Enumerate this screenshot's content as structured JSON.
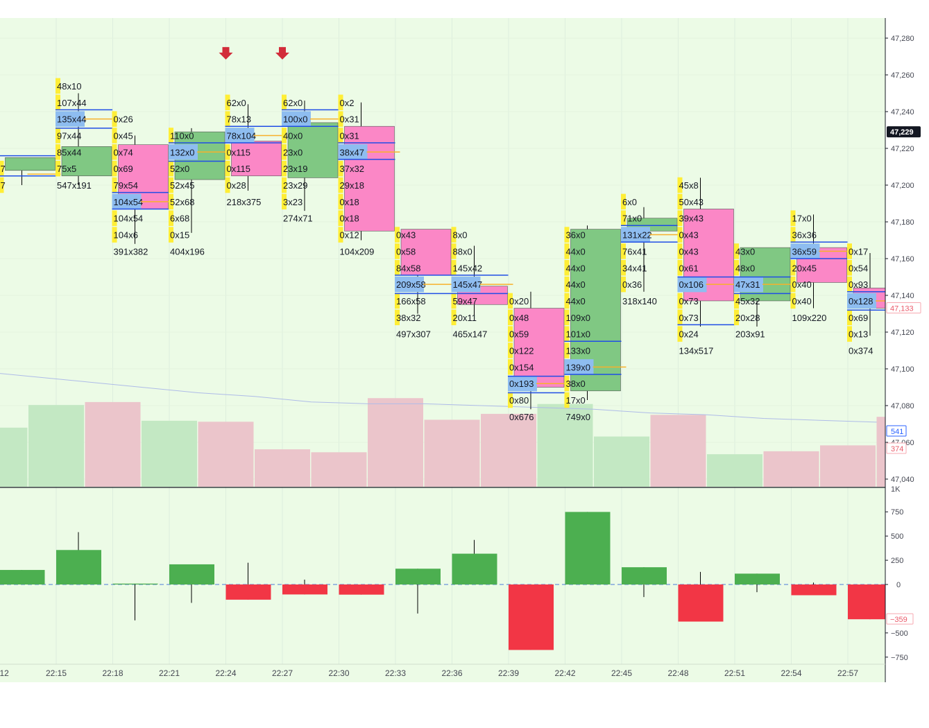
{
  "colors": {
    "background": "#ecfbe6",
    "up_candle": "#80c883",
    "down_candle": "#fb87c6",
    "footprint_cell": "#ffee36",
    "footprint_poc": "#8ebdf0",
    "level_line": "#1f4de6",
    "poc_line": "#f7b12b",
    "volume_up": "#c3e8c3",
    "volume_down": "#ebc5cb",
    "delta_up": "#4caf50",
    "delta_down": "#f23645",
    "signal_arrow": "#d22c3a",
    "vwap": "#aebbe8",
    "text": "#131722",
    "axis_text": "#434651"
  },
  "chart_data": [
    {
      "type": "candlestick-footprint",
      "title": "",
      "x_ticks": [
        "12",
        "22:15",
        "22:18",
        "22:21",
        "22:24",
        "22:27",
        "22:30",
        "22:33",
        "22:36",
        "22:39",
        "22:42",
        "22:45",
        "22:48",
        "22:51",
        "22:54",
        "22:57"
      ],
      "y_ticks": [
        "47,280",
        "47,260",
        "47,240",
        "47,220",
        "47,200",
        "47,180",
        "47,160",
        "47,140",
        "47,120",
        "47,100",
        "47,080",
        "47,060",
        "47,040"
      ],
      "ylim": [
        47035,
        47285
      ],
      "last_price_label": "47,229",
      "last_price": 47229,
      "close_price_label": "47,133",
      "close_price": 47133,
      "volume_label": "541",
      "volume_last": 541,
      "delta_last_label": "374",
      "volume_scale_label": "1K",
      "signals": [
        {
          "time": "22:24",
          "price": 47271
        },
        {
          "time": "22:27",
          "price": 47271
        }
      ],
      "vwap": [
        47099,
        47096,
        47093,
        47090,
        47087,
        47085,
        47082,
        47081,
        47081,
        47080,
        47079,
        47078,
        47076,
        47075,
        47073,
        47072,
        47071
      ],
      "candles": [
        {
          "time": "22:12",
          "x": 0,
          "open": 47208,
          "high": 47215,
          "low": 47200,
          "close": 47215,
          "cells": [
            {
              "text": "7",
              "price": 47209
            },
            {
              "text": "7",
              "price": 47200
            }
          ],
          "summary": "",
          "summary_price": 0,
          "levels": [
            47216,
            47205
          ],
          "poc": 47206
        },
        {
          "time": "22:15",
          "x": 1,
          "open": 47205,
          "high": 47250,
          "low": 47200,
          "close": 47221,
          "cells": [
            {
              "text": "48x10",
              "price": 47254
            },
            {
              "text": "107x44",
              "price": 47245
            },
            {
              "text": "135x44",
              "price": 47236
            },
            {
              "text": "97x44",
              "price": 47227
            },
            {
              "text": "85x44",
              "price": 47218
            },
            {
              "text": "75x5",
              "price": 47209
            }
          ],
          "summary": "547x191",
          "summary_price": 47200,
          "levels": [
            47241,
            47231
          ],
          "poc": 47236
        },
        {
          "time": "22:18",
          "x": 2,
          "open": 47222,
          "high": 47227,
          "low": 47168,
          "close": 47187,
          "cells": [
            {
              "text": "0x26",
              "price": 47236
            },
            {
              "text": "0x45",
              "price": 47227
            },
            {
              "text": "0x74",
              "price": 47218
            },
            {
              "text": "0x69",
              "price": 47209
            },
            {
              "text": "79x54",
              "price": 47200
            },
            {
              "text": "104x54",
              "price": 47191
            },
            {
              "text": "104x54",
              "price": 47182
            },
            {
              "text": "104x6",
              "price": 47173
            }
          ],
          "summary": "391x382",
          "summary_price": 47164,
          "levels": [
            47196,
            47187
          ],
          "poc": 47191
        },
        {
          "time": "22:21",
          "x": 3,
          "open": 47203,
          "high": 47231,
          "low": 47174,
          "close": 47229,
          "cells": [
            {
              "text": "110x0",
              "price": 47227
            },
            {
              "text": "132x0",
              "price": 47218
            },
            {
              "text": "52x0",
              "price": 47209
            },
            {
              "text": "52x45",
              "price": 47200
            },
            {
              "text": "52x68",
              "price": 47191
            },
            {
              "text": "6x68",
              "price": 47182
            },
            {
              "text": "0x15",
              "price": 47173
            }
          ],
          "summary": "404x196",
          "summary_price": 47164,
          "levels": [
            47223,
            47213
          ],
          "poc": 47218
        },
        {
          "time": "22:24",
          "x": 4,
          "open": 47224,
          "high": 47244,
          "low": 47197,
          "close": 47205,
          "cells": [
            {
              "text": "62x0",
              "price": 47245
            },
            {
              "text": "78x13",
              "price": 47236
            },
            {
              "text": "78x104",
              "price": 47227
            },
            {
              "text": "0x115",
              "price": 47218
            },
            {
              "text": "0x115",
              "price": 47209
            },
            {
              "text": "0x28",
              "price": 47200
            }
          ],
          "summary": "218x375",
          "summary_price": 47191,
          "levels": [
            47232,
            47223
          ],
          "poc": 47227
        },
        {
          "time": "22:27",
          "x": 5,
          "open": 47204,
          "high": 47246,
          "low": 47186,
          "close": 47234,
          "cells": [
            {
              "text": "62x0",
              "price": 47245
            },
            {
              "text": "100x0",
              "price": 47236
            },
            {
              "text": "40x0",
              "price": 47227
            },
            {
              "text": "23x0",
              "price": 47218
            },
            {
              "text": "23x19",
              "price": 47209
            },
            {
              "text": "23x29",
              "price": 47200
            },
            {
              "text": "3x23",
              "price": 47191
            }
          ],
          "summary": "274x71",
          "summary_price": 47182,
          "levels": [
            47241,
            47232
          ],
          "poc": 47236
        },
        {
          "time": "22:30",
          "x": 6,
          "open": 47232,
          "high": 47245,
          "low": 47170,
          "close": 47175,
          "cells": [
            {
              "text": "0x2",
              "price": 47245
            },
            {
              "text": "0x31",
              "price": 47236
            },
            {
              "text": "0x31",
              "price": 47227
            },
            {
              "text": "38x47",
              "price": 47218
            },
            {
              "text": "37x32",
              "price": 47209
            },
            {
              "text": "29x18",
              "price": 47200
            },
            {
              "text": "0x18",
              "price": 47191
            },
            {
              "text": "0x18",
              "price": 47182
            },
            {
              "text": "0x12",
              "price": 47173
            }
          ],
          "summary": "104x209",
          "summary_price": 47164,
          "levels": [
            47223,
            47214
          ],
          "poc": 47218
        },
        {
          "time": "22:33",
          "x": 7,
          "open": 47176,
          "high": 47176,
          "low": 47130,
          "close": 47151,
          "cells": [
            {
              "text": "0x43",
              "price": 47173
            },
            {
              "text": "0x58",
              "price": 47164
            },
            {
              "text": "84x58",
              "price": 47155
            },
            {
              "text": "209x58",
              "price": 47146
            },
            {
              "text": "166x58",
              "price": 47137
            },
            {
              "text": "38x32",
              "price": 47128
            }
          ],
          "summary": "497x307",
          "summary_price": 47119,
          "levels": [
            47151,
            47141
          ],
          "poc": 47146
        },
        {
          "time": "22:36",
          "x": 8,
          "open": 47145,
          "high": 47167,
          "low": 47129,
          "close": 47135,
          "cells": [
            {
              "text": "8x0",
              "price": 47173
            },
            {
              "text": "88x0",
              "price": 47164
            },
            {
              "text": "145x42",
              "price": 47155
            },
            {
              "text": "145x47",
              "price": 47146
            },
            {
              "text": "59x47",
              "price": 47137
            },
            {
              "text": "20x11",
              "price": 47128
            }
          ],
          "summary": "465x147",
          "summary_price": 47119,
          "levels": [
            47151,
            47141
          ],
          "poc": 47146
        },
        {
          "time": "22:39",
          "x": 9,
          "open": 47133,
          "high": 47142,
          "low": 47078,
          "close": 47090,
          "cells": [
            {
              "text": "0x20",
              "price": 47137
            },
            {
              "text": "0x48",
              "price": 47128
            },
            {
              "text": "0x59",
              "price": 47119
            },
            {
              "text": "0x122",
              "price": 47110
            },
            {
              "text": "0x154",
              "price": 47101
            },
            {
              "text": "0x193",
              "price": 47092
            },
            {
              "text": "0x80",
              "price": 47083
            }
          ],
          "summary": "0x676",
          "summary_price": 47074,
          "levels": [
            47096,
            47087
          ],
          "poc": 47092
        },
        {
          "time": "22:42",
          "x": 10,
          "open": 47088,
          "high": 47178,
          "low": 47083,
          "close": 47176,
          "cells": [
            {
              "text": "36x0",
              "price": 47173
            },
            {
              "text": "44x0",
              "price": 47164
            },
            {
              "text": "44x0",
              "price": 47155
            },
            {
              "text": "44x0",
              "price": 47146
            },
            {
              "text": "44x0",
              "price": 47137
            },
            {
              "text": "109x0",
              "price": 47128
            },
            {
              "text": "101x0",
              "price": 47119
            },
            {
              "text": "133x0",
              "price": 47110
            },
            {
              "text": "139x0",
              "price": 47101
            },
            {
              "text": "38x0",
              "price": 47092
            },
            {
              "text": "17x0",
              "price": 47083
            }
          ],
          "summary": "749x0",
          "summary_price": 47074,
          "levels": [
            47115,
            47097
          ],
          "poc": 47101
        },
        {
          "time": "22:45",
          "x": 11,
          "open": 47175,
          "high": 47188,
          "low": 47142,
          "close": 47182,
          "cells": [
            {
              "text": "6x0",
              "price": 47191
            },
            {
              "text": "71x0",
              "price": 47182
            },
            {
              "text": "131x22",
              "price": 47173
            },
            {
              "text": "76x41",
              "price": 47164
            },
            {
              "text": "34x41",
              "price": 47155
            },
            {
              "text": "0x36",
              "price": 47146
            }
          ],
          "summary": "318x140",
          "summary_price": 47137,
          "levels": [
            47178,
            47169
          ],
          "poc": 47173
        },
        {
          "time": "22:48",
          "x": 12,
          "open": 47187,
          "high": 47204,
          "low": 47123,
          "close": 47137,
          "cells": [
            {
              "text": "45x8",
              "price": 47200
            },
            {
              "text": "50x43",
              "price": 47191
            },
            {
              "text": "39x43",
              "price": 47182
            },
            {
              "text": "0x43",
              "price": 47173
            },
            {
              "text": "0x43",
              "price": 47164
            },
            {
              "text": "0x61",
              "price": 47155
            },
            {
              "text": "0x106",
              "price": 47146
            },
            {
              "text": "0x73",
              "price": 47137
            },
            {
              "text": "0x73",
              "price": 47128
            },
            {
              "text": "0x24",
              "price": 47119
            }
          ],
          "summary": "134x517",
          "summary_price": 47110,
          "levels": [
            47150,
            47124
          ],
          "poc": 47146
        },
        {
          "time": "22:51",
          "x": 13,
          "open": 47137,
          "high": 47166,
          "low": 47123,
          "close": 47166,
          "cells": [
            {
              "text": "43x0",
              "price": 47164
            },
            {
              "text": "48x0",
              "price": 47155
            },
            {
              "text": "47x31",
              "price": 47146
            },
            {
              "text": "45x32",
              "price": 47137
            },
            {
              "text": "20x28",
              "price": 47128
            }
          ],
          "summary": "203x91",
          "summary_price": 47119,
          "levels": [
            47150,
            47141
          ],
          "poc": 47146
        },
        {
          "time": "22:54",
          "x": 14,
          "open": 47166,
          "high": 47184,
          "low": 47133,
          "close": 47147,
          "cells": [
            {
              "text": "17x0",
              "price": 47182
            },
            {
              "text": "36x36",
              "price": 47173
            },
            {
              "text": "36x59",
              "price": 47164
            },
            {
              "text": "20x45",
              "price": 47155
            },
            {
              "text": "0x40",
              "price": 47146
            },
            {
              "text": "0x40",
              "price": 47137
            }
          ],
          "summary": "109x220",
          "summary_price": 47128,
          "levels": [
            47169,
            47160
          ],
          "poc": 47164
        },
        {
          "time": "22:57",
          "x": 15,
          "open": 47144,
          "high": 47163,
          "low": 47118,
          "close": 47133,
          "cells": [
            {
              "text": "0x17",
              "price": 47164
            },
            {
              "text": "0x54",
              "price": 47155
            },
            {
              "text": "0x93",
              "price": 47146
            },
            {
              "text": "0x128",
              "price": 47137
            },
            {
              "text": "0x69",
              "price": 47128
            },
            {
              "text": "0x13",
              "price": 47119
            }
          ],
          "summary": "0x374",
          "summary_price": 47110,
          "levels": [
            47142,
            47132
          ],
          "poc": 47137
        }
      ]
    },
    {
      "type": "bar",
      "name": "volume",
      "values": [
        300,
        415,
        430,
        335,
        330,
        190,
        175,
        450,
        340,
        370,
        420,
        255,
        365,
        165,
        180,
        210,
        355
      ],
      "directions": [
        "up",
        "up",
        "down",
        "up",
        "down",
        "down",
        "down",
        "down",
        "down",
        "down",
        "up",
        "up",
        "down",
        "up",
        "down",
        "down",
        "down"
      ],
      "ylim": [
        0,
        1000
      ]
    },
    {
      "type": "bar",
      "name": "delta",
      "y_ticks": [
        750,
        500,
        250,
        0,
        -500,
        -750
      ],
      "ylim": [
        -800,
        820
      ],
      "last_value_label": "−359",
      "last_value": -359,
      "bars": [
        {
          "x": 0,
          "value": 150,
          "high": 150,
          "low": 0
        },
        {
          "x": 1,
          "value": 356,
          "high": 540,
          "low": 0
        },
        {
          "x": 2,
          "value": 9,
          "high": 9,
          "low": -370
        },
        {
          "x": 3,
          "value": 208,
          "high": 208,
          "low": -190
        },
        {
          "x": 4,
          "value": -157,
          "high": 225,
          "low": -157
        },
        {
          "x": 5,
          "value": -103,
          "high": 50,
          "low": -103
        },
        {
          "x": 6,
          "value": -105,
          "high": 0,
          "low": -105
        },
        {
          "x": 7,
          "value": 163,
          "high": 163,
          "low": -300
        },
        {
          "x": 8,
          "value": 318,
          "high": 460,
          "low": 0
        },
        {
          "x": 9,
          "value": -676,
          "high": 0,
          "low": -676
        },
        {
          "x": 10,
          "value": 749,
          "high": 749,
          "low": 0
        },
        {
          "x": 11,
          "value": 178,
          "high": 178,
          "low": -130
        },
        {
          "x": 12,
          "value": -383,
          "high": 130,
          "low": -383
        },
        {
          "x": 13,
          "value": 112,
          "high": 112,
          "low": -80
        },
        {
          "x": 14,
          "value": -111,
          "high": 20,
          "low": -111
        },
        {
          "x": 15,
          "value": -359,
          "high": 0,
          "low": -359
        }
      ]
    }
  ]
}
